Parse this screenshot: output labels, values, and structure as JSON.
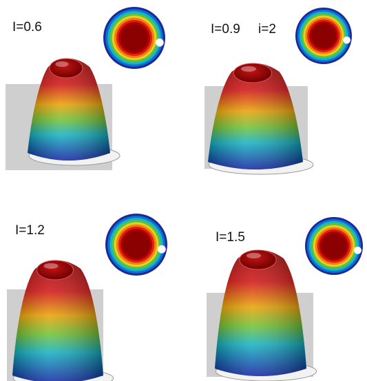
{
  "panels": [
    {
      "label": "I=0.6"
    },
    {
      "label": "I=0.9",
      "sublabel": "i=2"
    },
    {
      "label": "I=1.2"
    },
    {
      "label": "I=1.5"
    }
  ]
}
